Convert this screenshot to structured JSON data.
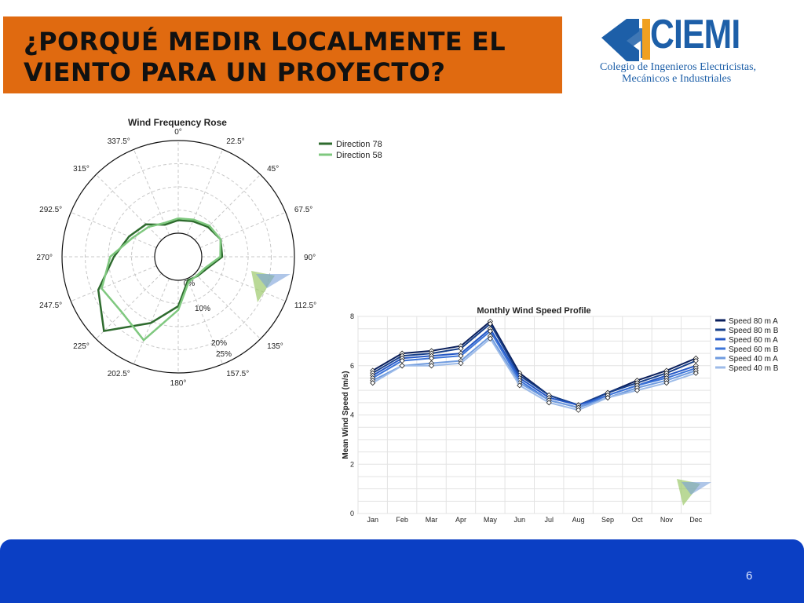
{
  "slide": {
    "title": "¿PORQUÉ MEDIR LOCALMENTE EL VIENTO PARA UN PROYECTO?",
    "page_number": "6",
    "accent": "#e06a10",
    "footer_color": "#0b3fc4"
  },
  "logo": {
    "name": "CIEMI",
    "subtitle_line1": "Colegio de Ingenieros Electricistas,",
    "subtitle_line2": "Mecánicos e Industriales",
    "color": "#1d5fa8"
  },
  "chart_data": [
    {
      "type": "radar",
      "title": "Wind Frequency Rose",
      "angles": [
        "0°",
        "22.5°",
        "45°",
        "67.5°",
        "90°",
        "112.5°",
        "135°",
        "157.5°",
        "180°",
        "202.5°",
        "225°",
        "247.5°",
        "270°",
        "292.5°",
        "315°",
        "337.5°"
      ],
      "radial_labels": [
        "0%",
        "10%",
        "20%",
        "25%"
      ],
      "rmax": 25,
      "legend_position": "top-right",
      "grid": true,
      "series": [
        {
          "name": "Direction 78",
          "color": "#2e6b2e",
          "values": [
            3.5,
            4.0,
            5.0,
            6.0,
            5.5,
            2.0,
            1.0,
            0.5,
            7.0,
            13.0,
            22.0,
            17.0,
            11.0,
            8.0,
            6.0,
            3.0
          ]
        },
        {
          "name": "Direction 58",
          "color": "#7fc87f",
          "values": [
            4.0,
            4.5,
            5.5,
            6.0,
            5.0,
            1.5,
            0.8,
            1.0,
            8.0,
            18.0,
            15.0,
            16.0,
            12.0,
            7.0,
            5.0,
            3.5
          ]
        }
      ]
    },
    {
      "type": "line",
      "title": "Monthly Wind Speed Profile",
      "ylabel": "Mean Wind Speed (m/s)",
      "xlabel": "",
      "categories": [
        "Jan",
        "Feb",
        "Mar",
        "Apr",
        "May",
        "Jun",
        "Jul",
        "Aug",
        "Sep",
        "Oct",
        "Nov",
        "Dec"
      ],
      "ylim": [
        0,
        8
      ],
      "yticks": [
        0,
        2,
        4,
        6,
        8
      ],
      "grid": true,
      "legend_position": "top-right",
      "series": [
        {
          "name": "Speed 80 m A",
          "color": "#0a1f5c",
          "values": [
            5.8,
            6.5,
            6.6,
            6.8,
            7.8,
            5.7,
            4.8,
            4.4,
            4.9,
            5.4,
            5.8,
            6.3
          ]
        },
        {
          "name": "Speed 80 m B",
          "color": "#173f8a",
          "values": [
            5.7,
            6.4,
            6.5,
            6.7,
            7.7,
            5.6,
            4.8,
            4.4,
            4.9,
            5.3,
            5.7,
            6.2
          ]
        },
        {
          "name": "Speed 60 m A",
          "color": "#2457c5",
          "values": [
            5.6,
            6.3,
            6.4,
            6.5,
            7.5,
            5.5,
            4.7,
            4.4,
            4.8,
            5.2,
            5.6,
            6.0
          ]
        },
        {
          "name": "Speed 60 m B",
          "color": "#3c74d8",
          "values": [
            5.5,
            6.2,
            6.3,
            6.4,
            7.4,
            5.4,
            4.6,
            4.3,
            4.8,
            5.2,
            5.5,
            5.9
          ]
        },
        {
          "name": "Speed 40 m A",
          "color": "#6f9bdf",
          "values": [
            5.4,
            6.0,
            6.1,
            6.2,
            7.2,
            5.3,
            4.6,
            4.3,
            4.7,
            5.1,
            5.4,
            5.8
          ]
        },
        {
          "name": "Speed 40 m B",
          "color": "#9dbbe8",
          "values": [
            5.3,
            6.0,
            6.0,
            6.1,
            7.1,
            5.2,
            4.5,
            4.2,
            4.7,
            5.0,
            5.3,
            5.7
          ]
        }
      ]
    }
  ]
}
